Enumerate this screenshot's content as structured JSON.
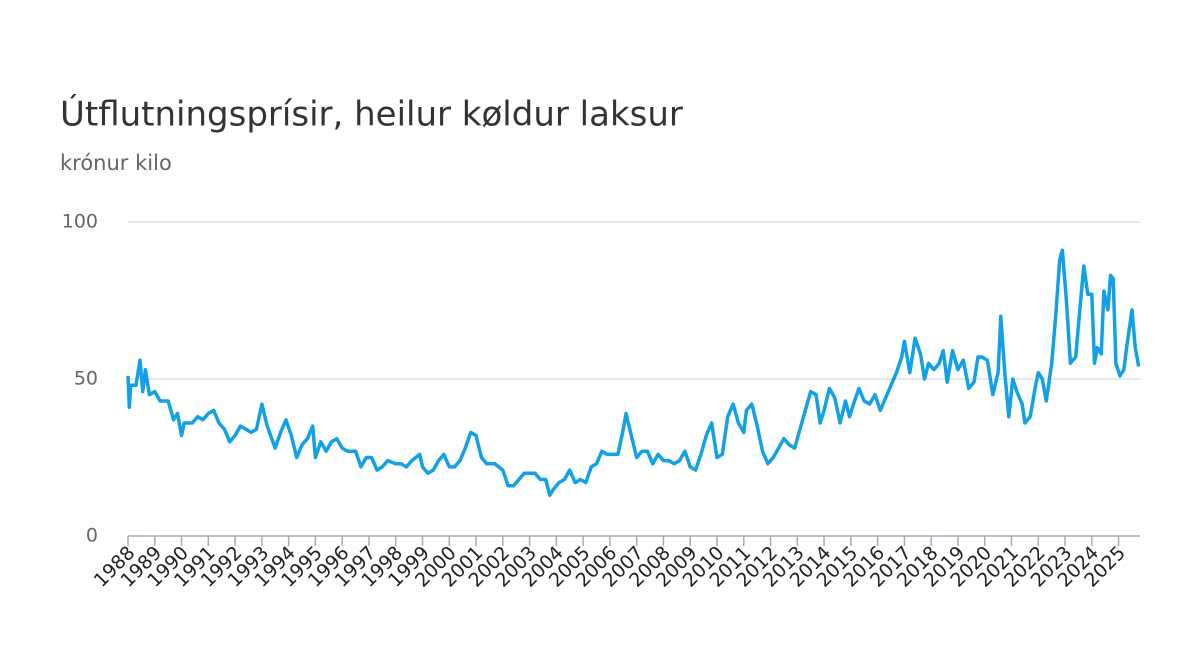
{
  "chart_data": {
    "type": "line",
    "title": "Útflutningsprísir, heilur køldur laksur",
    "subtitle": "krónur kilo",
    "color": "#12a0e6",
    "x": [
      1988.0,
      1988.05,
      1988.1,
      1988.3,
      1988.45,
      1988.55,
      1988.65,
      1988.8,
      1989.0,
      1989.2,
      1989.5,
      1989.7,
      1989.85,
      1990.0,
      1990.1,
      1990.4,
      1990.6,
      1990.8,
      1991.0,
      1991.2,
      1991.4,
      1991.6,
      1991.8,
      1992.0,
      1992.2,
      1992.4,
      1992.6,
      1992.8,
      1993.0,
      1993.2,
      1993.5,
      1993.7,
      1993.9,
      1994.1,
      1994.3,
      1994.5,
      1994.7,
      1994.9,
      1995.0,
      1995.2,
      1995.4,
      1995.6,
      1995.8,
      1996.0,
      1996.2,
      1996.5,
      1996.7,
      1996.9,
      1997.1,
      1997.3,
      1997.5,
      1997.7,
      1998.0,
      1998.2,
      1998.4,
      1998.6,
      1998.9,
      1999.0,
      1999.2,
      1999.4,
      1999.6,
      1999.8,
      2000.0,
      2000.2,
      2000.4,
      2000.6,
      2000.8,
      2001.0,
      2001.2,
      2001.4,
      2001.7,
      2002.0,
      2002.2,
      2002.4,
      2002.6,
      2002.8,
      2003.0,
      2003.2,
      2003.4,
      2003.6,
      2003.75,
      2003.9,
      2004.1,
      2004.3,
      2004.5,
      2004.7,
      2004.9,
      2005.1,
      2005.3,
      2005.5,
      2005.7,
      2005.9,
      2006.1,
      2006.3,
      2006.5,
      2006.6,
      2006.8,
      2007.0,
      2007.2,
      2007.4,
      2007.6,
      2007.8,
      2008.0,
      2008.2,
      2008.4,
      2008.6,
      2008.8,
      2009.0,
      2009.2,
      2009.4,
      2009.6,
      2009.8,
      2010.0,
      2010.2,
      2010.4,
      2010.6,
      2010.8,
      2011.0,
      2011.1,
      2011.3,
      2011.5,
      2011.7,
      2011.9,
      2012.1,
      2012.3,
      2012.5,
      2012.7,
      2012.9,
      2013.1,
      2013.3,
      2013.5,
      2013.7,
      2013.85,
      2014.0,
      2014.2,
      2014.4,
      2014.6,
      2014.8,
      2014.95,
      2015.1,
      2015.3,
      2015.5,
      2015.7,
      2015.9,
      2016.1,
      2016.3,
      2016.5,
      2016.7,
      2016.9,
      2017.0,
      2017.2,
      2017.4,
      2017.6,
      2017.75,
      2017.9,
      2018.1,
      2018.3,
      2018.45,
      2018.6,
      2018.8,
      2019.0,
      2019.2,
      2019.4,
      2019.6,
      2019.75,
      2019.9,
      2020.1,
      2020.3,
      2020.5,
      2020.6,
      2020.75,
      2020.9,
      2021.05,
      2021.2,
      2021.4,
      2021.5,
      2021.7,
      2021.9,
      2022.0,
      2022.15,
      2022.3,
      2022.5,
      2022.65,
      2022.8,
      2022.9,
      2023.05,
      2023.2,
      2023.4,
      2023.55,
      2023.7,
      2023.85,
      2024.0,
      2024.1,
      2024.2,
      2024.35,
      2024.45,
      2024.6,
      2024.7,
      2024.8,
      2024.9,
      2025.05,
      2025.2,
      2025.3,
      2025.5,
      2025.62,
      2025.75
    ],
    "values": [
      51,
      41,
      48,
      48,
      56,
      46,
      53,
      45,
      46,
      43,
      43,
      37,
      39,
      32,
      36,
      36,
      38,
      37,
      39,
      40,
      36,
      34,
      30,
      32,
      35,
      34,
      33,
      34,
      42,
      35,
      28,
      33,
      37,
      32,
      25,
      29,
      31,
      35,
      25,
      30,
      27,
      30,
      31,
      28,
      27,
      27,
      22,
      25,
      25,
      21,
      22,
      24,
      23,
      23,
      22,
      24,
      26,
      22,
      20,
      21,
      24,
      26,
      22,
      22,
      24,
      28,
      33,
      32,
      25,
      23,
      23,
      21,
      16,
      16,
      18,
      20,
      20,
      20,
      18,
      18,
      13,
      15,
      17,
      18,
      21,
      17,
      18,
      17,
      22,
      23,
      27,
      26,
      26,
      26,
      34,
      39,
      32,
      25,
      27,
      27,
      23,
      26,
      24,
      24,
      23,
      24,
      27,
      22,
      21,
      26,
      32,
      36,
      25,
      26,
      38,
      42,
      36,
      33,
      40,
      42,
      35,
      27,
      23,
      25,
      28,
      31,
      29,
      28,
      34,
      40,
      46,
      45,
      36,
      40,
      47,
      44,
      36,
      43,
      38,
      42,
      47,
      43,
      42,
      45,
      40,
      44,
      48,
      52,
      57,
      62,
      52,
      63,
      58,
      50,
      55,
      53,
      55,
      59,
      49,
      59,
      53,
      56,
      47,
      49,
      57,
      57,
      56,
      45,
      52,
      70,
      52,
      38,
      50,
      46,
      42,
      36,
      38,
      48,
      52,
      50,
      43,
      55,
      70,
      88,
      91,
      75,
      55,
      57,
      72,
      86,
      77,
      77,
      55,
      60,
      58,
      78,
      72,
      83,
      82,
      55,
      51,
      53,
      60,
      72,
      60,
      54
    ],
    "xlim": [
      1988,
      2025.8
    ],
    "xticks": [
      1988,
      1989,
      1990,
      1991,
      1992,
      1993,
      1994,
      1995,
      1996,
      1997,
      1998,
      1999,
      2000,
      2001,
      2002,
      2003,
      2004,
      2005,
      2006,
      2007,
      2008,
      2009,
      2010,
      2011,
      2012,
      2013,
      2014,
      2015,
      2016,
      2017,
      2018,
      2019,
      2020,
      2021,
      2022,
      2023,
      2024,
      2025
    ],
    "ylim": [
      0,
      100
    ],
    "yticks": [
      0,
      50,
      100
    ],
    "grid": true
  }
}
